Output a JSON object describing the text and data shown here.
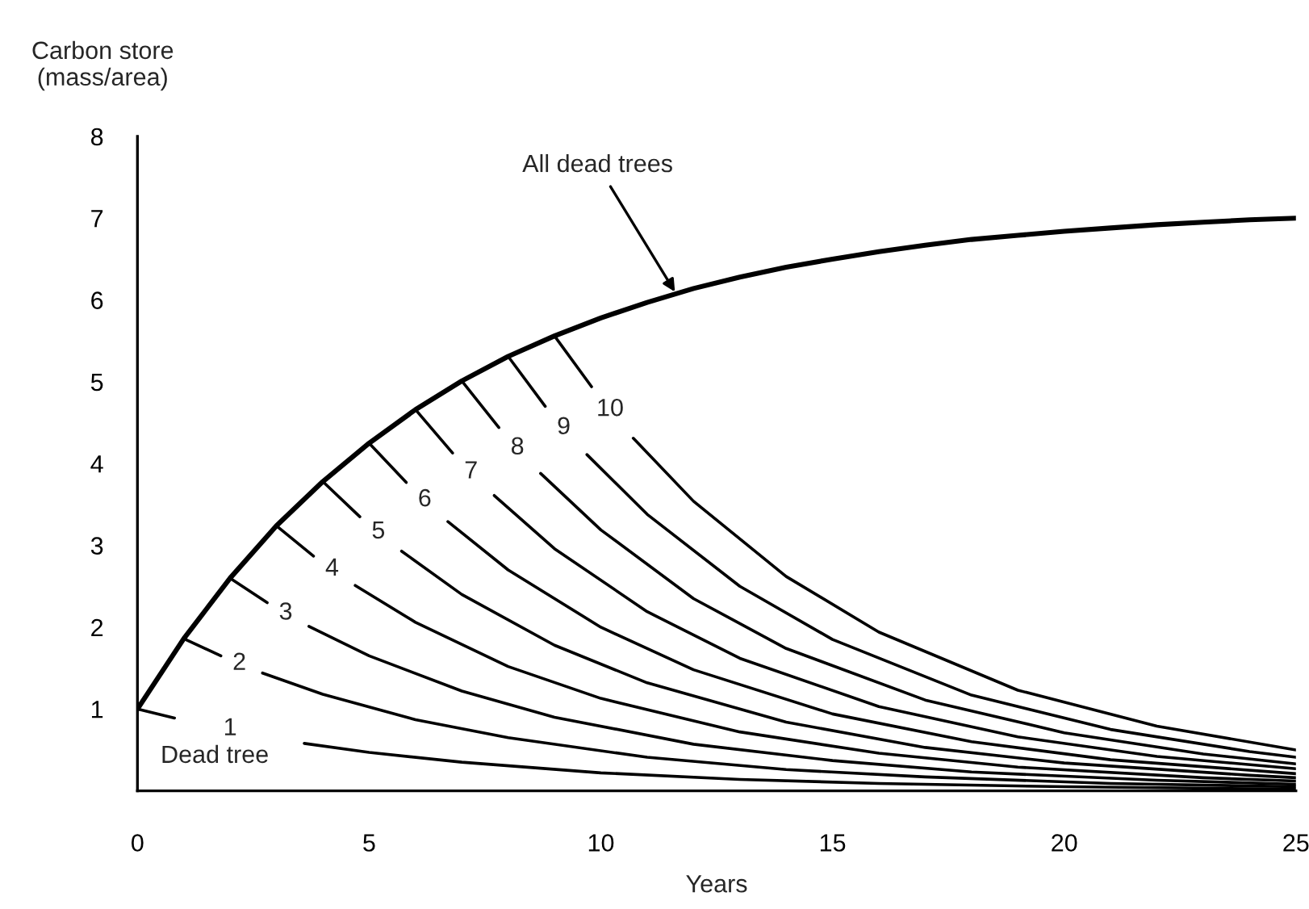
{
  "chart_data": {
    "type": "line",
    "xlabel": "Years",
    "ylabel": "Carbon store\n(mass/area)",
    "xlim": [
      0,
      25
    ],
    "ylim": [
      0,
      8
    ],
    "xticks": [
      0,
      5,
      10,
      15,
      20,
      25
    ],
    "yticks": [
      1,
      2,
      3,
      4,
      5,
      6,
      7,
      8
    ],
    "grid": false,
    "legend": false,
    "marker": "none",
    "line_style": "solid",
    "series": [
      {
        "name": "All dead trees",
        "color": "#000000",
        "x": [
          0,
          1,
          2,
          3,
          4,
          5,
          6,
          7,
          8,
          9,
          10,
          11,
          12,
          13,
          14,
          15,
          16,
          17,
          18,
          19,
          20,
          21,
          22,
          23,
          24,
          25
        ],
        "values": [
          1,
          1.86,
          2.6,
          3.24,
          3.78,
          4.25,
          4.66,
          5.01,
          5.31,
          5.56,
          5.78,
          5.97,
          6.14,
          6.28,
          6.4,
          6.5,
          6.59,
          6.67,
          6.74,
          6.79,
          6.84,
          6.88,
          6.92,
          6.95,
          6.98,
          7.0
        ]
      },
      {
        "name": "1",
        "color": "#000000",
        "x": [
          0,
          0.8,
          2,
          3.6,
          5,
          7,
          10,
          13,
          16,
          20,
          25
        ],
        "values": [
          1,
          0.89,
          null,
          0.58,
          0.47,
          0.35,
          0.22,
          0.14,
          0.09,
          0.05,
          0.02
        ]
      },
      {
        "name": "2",
        "color": "#000000",
        "x": [
          1,
          1.8,
          2.2,
          2.7,
          4,
          6,
          8,
          11,
          14,
          17,
          21,
          25
        ],
        "values": [
          1.86,
          1.65,
          null,
          1.44,
          1.18,
          0.87,
          0.65,
          0.41,
          0.26,
          0.17,
          0.09,
          0.05
        ]
      },
      {
        "name": "3",
        "color": "#000000",
        "x": [
          2,
          2.8,
          3.2,
          3.7,
          5,
          7,
          9,
          12,
          15,
          18,
          22,
          25
        ],
        "values": [
          2.6,
          2.3,
          null,
          2.01,
          1.65,
          1.22,
          0.9,
          0.57,
          0.37,
          0.23,
          0.13,
          0.08
        ]
      },
      {
        "name": "4",
        "color": "#000000",
        "x": [
          3,
          3.8,
          4.2,
          4.7,
          6,
          8,
          10,
          13,
          16,
          19,
          23,
          25
        ],
        "values": [
          3.24,
          2.87,
          null,
          2.51,
          2.06,
          1.52,
          1.13,
          0.72,
          0.46,
          0.29,
          0.16,
          0.12
        ]
      },
      {
        "name": "5",
        "color": "#000000",
        "x": [
          4,
          4.8,
          5.2,
          5.7,
          7,
          9,
          11,
          14,
          17,
          20,
          24,
          25
        ],
        "values": [
          3.78,
          3.35,
          null,
          2.93,
          2.4,
          1.78,
          1.32,
          0.84,
          0.53,
          0.34,
          0.19,
          0.16
        ]
      },
      {
        "name": "6",
        "color": "#000000",
        "x": [
          5,
          5.8,
          6.2,
          6.7,
          8,
          10,
          12,
          15,
          18,
          21,
          25
        ],
        "values": [
          4.25,
          3.77,
          null,
          3.29,
          2.7,
          2.0,
          1.48,
          0.94,
          0.6,
          0.38,
          0.21
        ]
      },
      {
        "name": "7",
        "color": "#000000",
        "x": [
          6,
          6.8,
          7.2,
          7.7,
          9,
          11,
          13,
          16,
          19,
          22,
          25
        ],
        "values": [
          4.66,
          4.13,
          null,
          3.61,
          2.96,
          2.19,
          1.62,
          1.03,
          0.66,
          0.42,
          0.27
        ]
      },
      {
        "name": "8",
        "color": "#000000",
        "x": [
          7,
          7.8,
          8.2,
          8.7,
          10,
          12,
          14,
          17,
          20,
          23,
          25
        ],
        "values": [
          5.01,
          4.44,
          null,
          3.88,
          3.19,
          2.35,
          1.74,
          1.11,
          0.71,
          0.45,
          0.33
        ]
      },
      {
        "name": "9",
        "color": "#000000",
        "x": [
          8,
          8.8,
          9.2,
          9.7,
          11,
          13,
          15,
          18,
          21,
          24,
          25
        ],
        "values": [
          5.31,
          4.7,
          null,
          4.11,
          3.38,
          2.5,
          1.85,
          1.17,
          0.75,
          0.48,
          0.41
        ]
      },
      {
        "name": "10",
        "color": "#000000",
        "x": [
          9,
          9.8,
          10.2,
          10.7,
          12,
          14,
          16,
          19,
          22,
          25
        ],
        "values": [
          5.56,
          4.94,
          null,
          4.31,
          3.54,
          2.62,
          1.94,
          1.23,
          0.79,
          0.5
        ]
      }
    ],
    "annotations": [
      "Dead tree"
    ]
  }
}
